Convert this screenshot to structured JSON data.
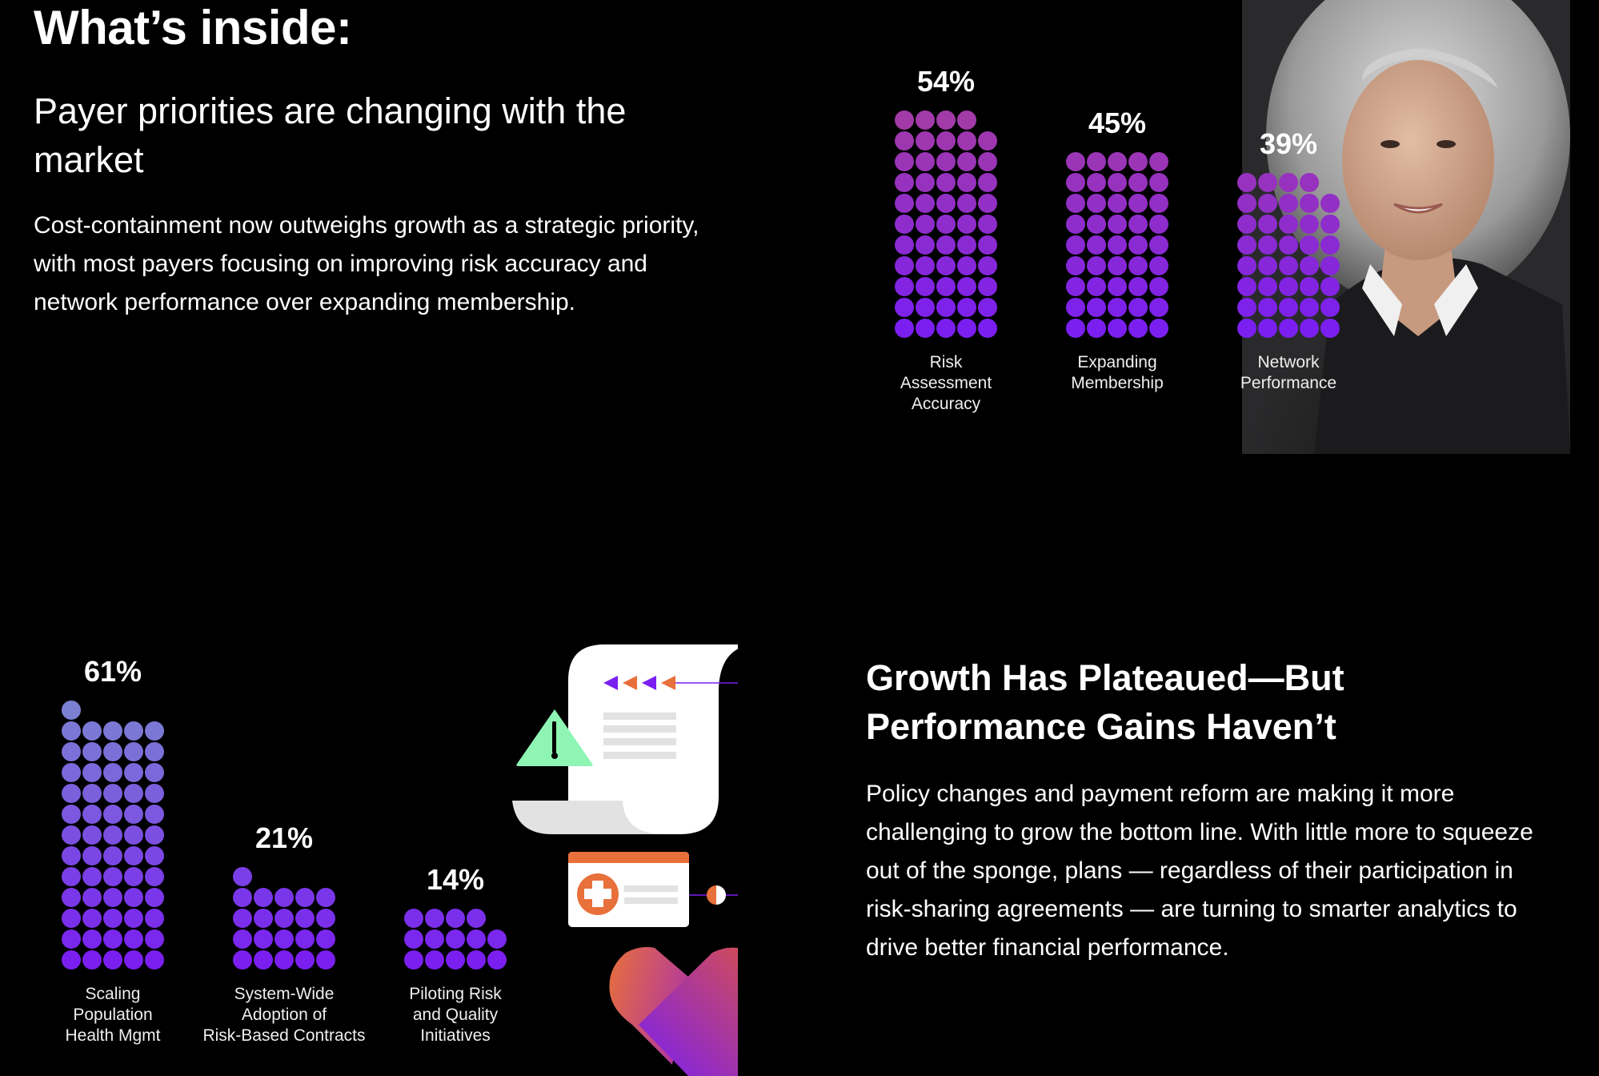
{
  "header": {
    "title": "What’s inside:"
  },
  "section1": {
    "subtitle": "Payer priorities are changing with the market",
    "body": "Cost-containment now outweighs growth as a strategic priority, with most payers focusing on improving risk accuracy and network performance over expanding membership."
  },
  "section2": {
    "title": "Growth Has Plateaued—But Performance Gains Haven’t",
    "body": "Policy changes and payment reform are making it more challenging to grow the bottom line. With little more to squeeze out of the sponge, plans — regardless of their participation in risk-sharing agreements — are turning to smarter analytics to drive better financial performance."
  },
  "chart_data": [
    {
      "type": "bar",
      "style": "dot-column (1 dot = 1%)",
      "categories": [
        "Risk Assessment Accuracy",
        "Expanding Membership",
        "Network Performance"
      ],
      "label_lines": [
        [
          "Risk",
          "Assessment",
          "Accuracy"
        ],
        [
          "Expanding",
          "Membership"
        ],
        [
          "Network",
          "Performance"
        ]
      ],
      "values": [
        54,
        45,
        39
      ],
      "value_labels": [
        "54%",
        "45%",
        "39%"
      ],
      "colors": {
        "top": "#a23aa8",
        "bottom": "#7a1ff0"
      }
    },
    {
      "type": "bar",
      "style": "dot-column (1 dot = 1%)",
      "categories": [
        "Scaling Population Health Mgmt",
        "System-Wide Adoption of Risk-Based Contracts",
        "Piloting Risk and Quality Initiatives"
      ],
      "label_lines": [
        [
          "Scaling",
          "Population",
          "Health Mgmt"
        ],
        [
          "System-Wide",
          "Adoption of",
          "Risk-Based Contracts"
        ],
        [
          "Piloting Risk",
          "and Quality",
          "Initiatives"
        ]
      ],
      "values": [
        61,
        21,
        14
      ],
      "value_labels": [
        "61%",
        "21%",
        "14%"
      ],
      "colors": {
        "top": "#7b80d2",
        "bottom": "#7a1ff0"
      }
    }
  ],
  "colors": {
    "orange": "#e8703a",
    "purple": "#7a1ff0",
    "mint": "#8ef5b4",
    "paper": "#ffffff",
    "paper_shade": "#e2e2e2"
  }
}
